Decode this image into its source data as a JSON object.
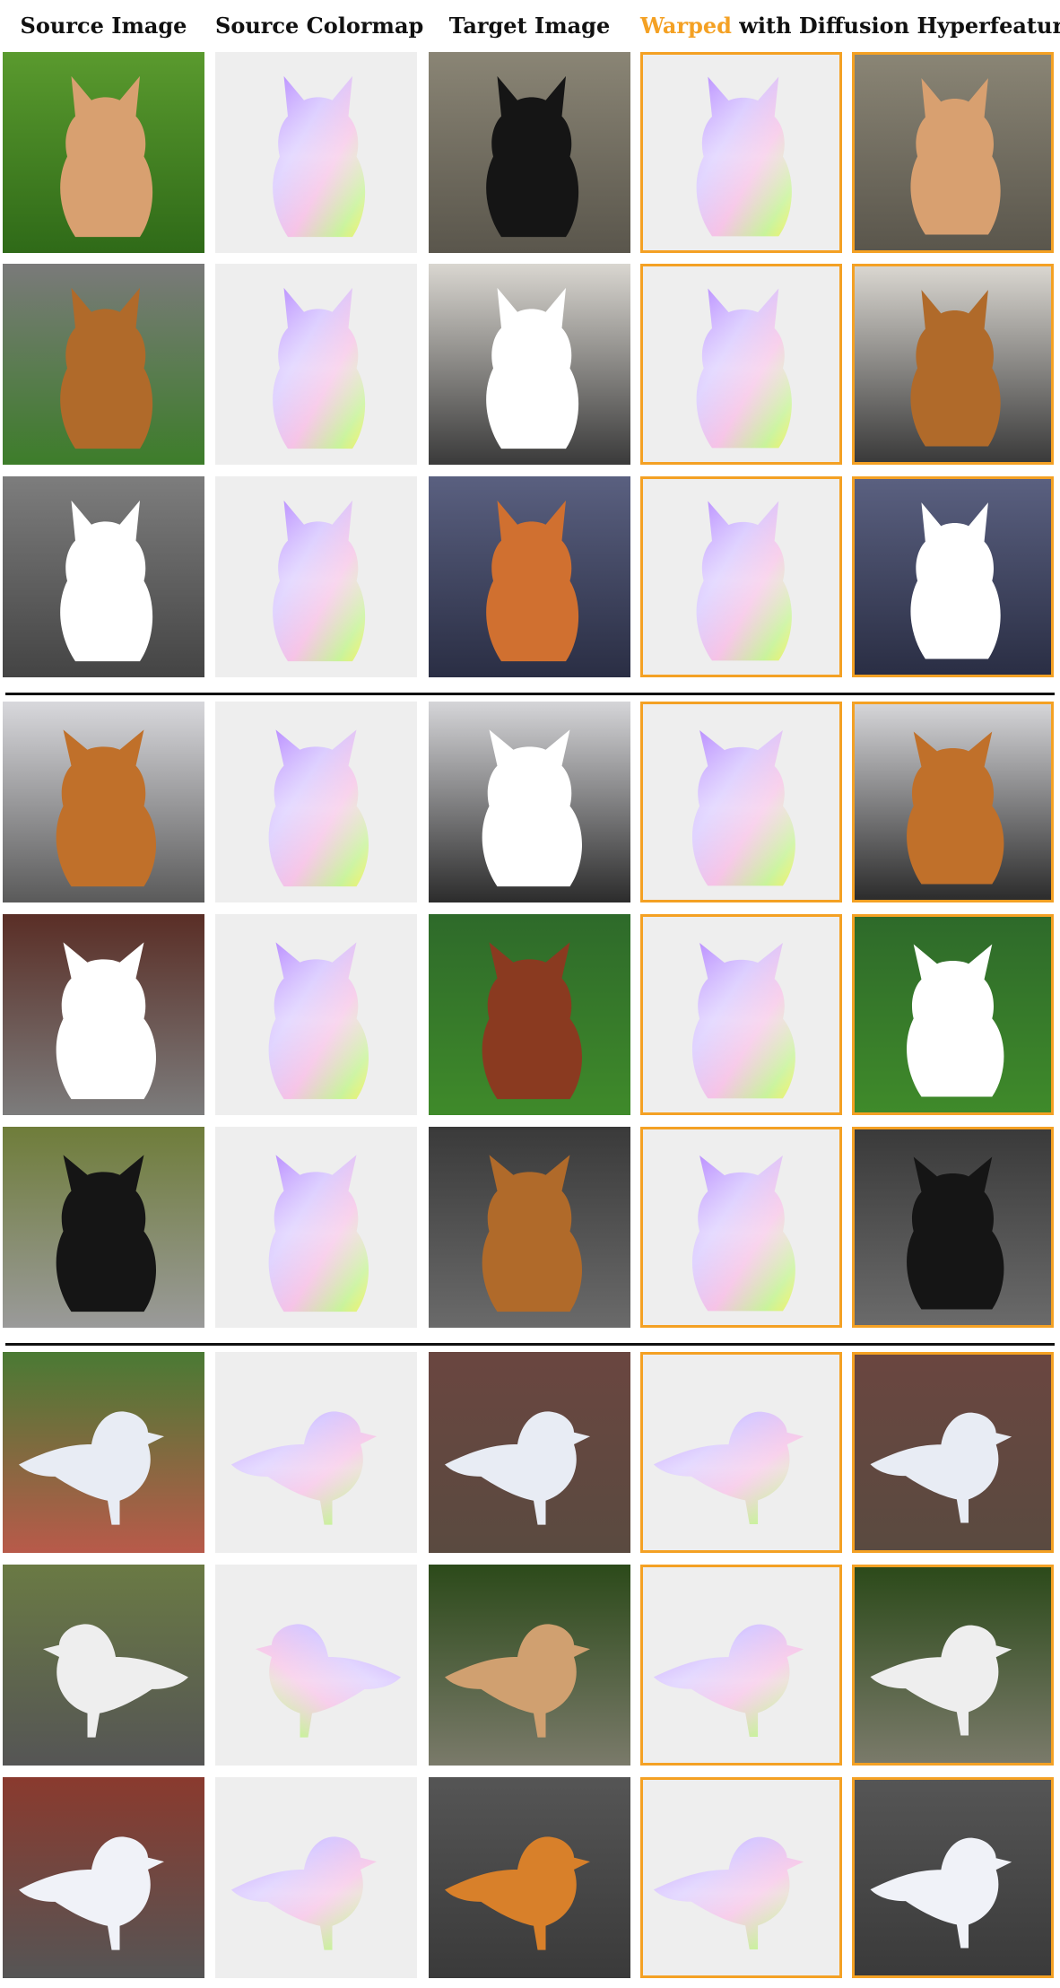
{
  "header": {
    "source_image": "Source Image",
    "source_colormap": "Source Colormap",
    "target_image": "Target Image",
    "warped_word": "Warped",
    "warped_rest": " with Diffusion Hyperfeatures"
  },
  "colors": {
    "accent_border": "#f4a124",
    "colormap_bg": "#eeeeee"
  },
  "rows": [
    {
      "category": "cat",
      "src_bg": [
        "#5a9a2e",
        "#2f6a18"
      ],
      "src_fur": "#d8a070",
      "tgt_bg": [
        "#8a8575",
        "#5a564c"
      ],
      "tgt_fur": "#151515"
    },
    {
      "category": "cat",
      "src_bg": [
        "#7a7a7a",
        "#3d7d2a"
      ],
      "src_fur": "#b06a2a",
      "tgt_bg": [
        "#d9d6d0",
        "#3a3a3a"
      ],
      "tgt_fur": "#ffffff"
    },
    {
      "category": "cat",
      "src_bg": [
        "#7d7d7d",
        "#444444"
      ],
      "src_fur": "#ffffff",
      "tgt_bg": [
        "#5a6080",
        "#2a2e44"
      ],
      "tgt_fur": "#d07030"
    },
    {
      "category": "dog",
      "src_bg": [
        "#d8d8dc",
        "#5a5a5a"
      ],
      "src_fur": "#c0702a",
      "tgt_bg": [
        "#d5d5d8",
        "#2c2c2c"
      ],
      "tgt_fur": "#ffffff"
    },
    {
      "category": "dog",
      "src_bg": [
        "#5a2e26",
        "#7c7c7c"
      ],
      "src_fur": "#ffffff",
      "tgt_bg": [
        "#2e6a2a",
        "#3f8a2a"
      ],
      "tgt_fur": "#8a3a20"
    },
    {
      "category": "dog",
      "src_bg": [
        "#6f7d3a",
        "#9a9a9a"
      ],
      "src_fur": "#151515",
      "tgt_bg": [
        "#3a3a3a",
        "#6a6a6a"
      ],
      "tgt_fur": "#b06a2a"
    },
    {
      "category": "bird",
      "src_bg": [
        "#4a7a34",
        "#b85a4a"
      ],
      "src_fur": "#e8ecf4",
      "tgt_bg": [
        "#6a4640",
        "#5a4a40"
      ],
      "tgt_fur": "#e8ecf4"
    },
    {
      "category": "bird",
      "src_bg": [
        "#6a7a44",
        "#555555"
      ],
      "src_fur": "#eeeeee",
      "tgt_bg": [
        "#2c4a1a",
        "#7a7a6a"
      ],
      "tgt_fur": "#d0a070"
    },
    {
      "category": "bird",
      "src_bg": [
        "#8a3a2e",
        "#555555"
      ],
      "src_fur": "#f0f2f8",
      "tgt_bg": [
        "#555555",
        "#3a3a3a"
      ],
      "tgt_fur": "#d8802a"
    }
  ]
}
